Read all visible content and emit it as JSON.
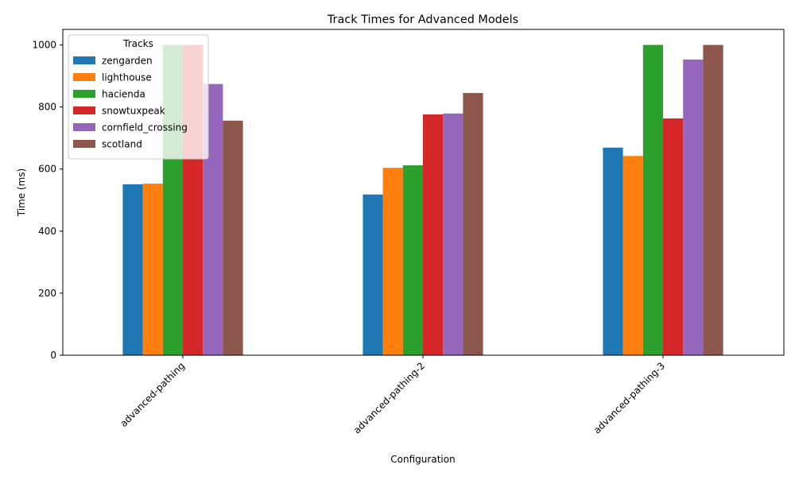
{
  "chart_data": {
    "type": "bar",
    "title": "Track Times for Advanced Models",
    "xlabel": "Configuration",
    "ylabel": "Time (ms)",
    "categories": [
      "advanced-pathing",
      "advanced-pathing-2",
      "advanced-pathing-3"
    ],
    "ylim": [
      0,
      1050
    ],
    "yticks": [
      0,
      200,
      400,
      600,
      800,
      1000
    ],
    "grid": false,
    "legend": {
      "title": "Tracks",
      "placement": "top-left",
      "alpha": 0.8
    },
    "series": [
      {
        "name": "zengarden",
        "color": "#1f77b4",
        "values": [
          551,
          518,
          669
        ]
      },
      {
        "name": "lighthouse",
        "color": "#ff7f0e",
        "values": [
          553,
          604,
          642
        ]
      },
      {
        "name": "hacienda",
        "color": "#2ca02c",
        "values": [
          1000,
          612,
          1000
        ]
      },
      {
        "name": "snowtuxpeak",
        "color": "#d62728",
        "values": [
          1000,
          776,
          763
        ]
      },
      {
        "name": "cornfield_crossing",
        "color": "#9467bd",
        "values": [
          874,
          779,
          953
        ]
      },
      {
        "name": "scotland",
        "color": "#8c564b",
        "values": [
          756,
          845,
          1000
        ]
      }
    ]
  }
}
